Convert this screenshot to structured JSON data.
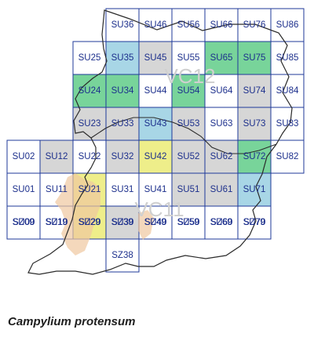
{
  "species": "Campylium protensum",
  "vice_counties": [
    "VC12",
    "VC11"
  ],
  "legend_colors": {
    "empty": "#ffffff",
    "grey": "#d6d6d6",
    "blue": "#a8d6e6",
    "green": "#78d49a",
    "yellow": "#eeee8a",
    "grid_line": "#1f3a9a",
    "coast_fill": "#f0c8a0"
  },
  "squares": [
    {
      "code": "SU36",
      "status": "empty"
    },
    {
      "code": "SU46",
      "status": "empty"
    },
    {
      "code": "SU56",
      "status": "empty"
    },
    {
      "code": "SU66",
      "status": "empty"
    },
    {
      "code": "SU76",
      "status": "empty"
    },
    {
      "code": "SU86",
      "status": "empty"
    },
    {
      "code": "SU25",
      "status": "empty"
    },
    {
      "code": "SU35",
      "status": "blue"
    },
    {
      "code": "SU45",
      "status": "grey"
    },
    {
      "code": "SU55",
      "status": "empty"
    },
    {
      "code": "SU65",
      "status": "green"
    },
    {
      "code": "SU75",
      "status": "green"
    },
    {
      "code": "SU85",
      "status": "empty"
    },
    {
      "code": "SU24",
      "status": "green"
    },
    {
      "code": "SU34",
      "status": "green"
    },
    {
      "code": "SU44",
      "status": "empty"
    },
    {
      "code": "SU54",
      "status": "green"
    },
    {
      "code": "SU64",
      "status": "empty"
    },
    {
      "code": "SU74",
      "status": "grey"
    },
    {
      "code": "SU84",
      "status": "empty"
    },
    {
      "code": "SU23",
      "status": "grey"
    },
    {
      "code": "SU33",
      "status": "grey"
    },
    {
      "code": "SU43",
      "status": "blue"
    },
    {
      "code": "SU53",
      "status": "grey"
    },
    {
      "code": "SU63",
      "status": "empty"
    },
    {
      "code": "SU73",
      "status": "grey"
    },
    {
      "code": "SU83",
      "status": "empty"
    },
    {
      "code": "SU02",
      "status": "empty"
    },
    {
      "code": "SU12",
      "status": "grey"
    },
    {
      "code": "SU22",
      "status": "empty"
    },
    {
      "code": "SU32",
      "status": "grey"
    },
    {
      "code": "SU42",
      "status": "yellow"
    },
    {
      "code": "SU52",
      "status": "grey"
    },
    {
      "code": "SU62",
      "status": "grey"
    },
    {
      "code": "SU72",
      "status": "green"
    },
    {
      "code": "SU82",
      "status": "empty"
    },
    {
      "code": "SU01",
      "status": "empty"
    },
    {
      "code": "SU11",
      "status": "empty"
    },
    {
      "code": "SU21",
      "status": "yellow"
    },
    {
      "code": "SU31",
      "status": "empty"
    },
    {
      "code": "SU41",
      "status": "empty"
    },
    {
      "code": "SU51",
      "status": "grey"
    },
    {
      "code": "SU61",
      "status": "grey"
    },
    {
      "code": "SU71",
      "status": "blue"
    },
    {
      "code": "SU00",
      "status": "empty"
    },
    {
      "code": "SU10",
      "status": "empty"
    },
    {
      "code": "SU20",
      "status": "grey"
    },
    {
      "code": "SU30",
      "status": "blue"
    },
    {
      "code": "SU40",
      "status": "empty"
    },
    {
      "code": "SU50",
      "status": "empty"
    },
    {
      "code": "SU60",
      "status": "blue"
    },
    {
      "code": "SU70",
      "status": "empty"
    },
    {
      "code": "SZ09",
      "status": "empty"
    },
    {
      "code": "SZ19",
      "status": "empty"
    },
    {
      "code": "SZ29",
      "status": "yellow"
    },
    {
      "code": "SZ39",
      "status": "grey"
    },
    {
      "code": "SZ49",
      "status": "empty"
    },
    {
      "code": "SZ59",
      "status": "empty"
    },
    {
      "code": "SZ69",
      "status": "empty"
    },
    {
      "code": "SZ79",
      "status": "empty"
    },
    {
      "code": "SZ38",
      "status": "empty"
    }
  ]
}
